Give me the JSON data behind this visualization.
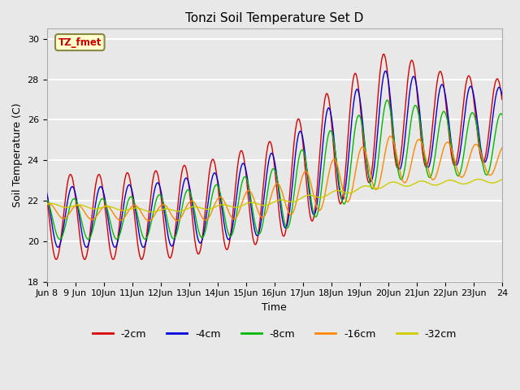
{
  "title": "Tonzi Soil Temperature Set D",
  "xlabel": "Time",
  "ylabel": "Soil Temperature (C)",
  "ylim": [
    18,
    30.5
  ],
  "xlim": [
    0,
    384
  ],
  "background_color": "#e8e8e8",
  "plot_bg_color": "#e8e8e8",
  "grid_color": "white",
  "series": {
    "-2cm": {
      "color": "#dd0000",
      "lw": 1.0
    },
    "-4cm": {
      "color": "#0000dd",
      "lw": 1.0
    },
    "-8cm": {
      "color": "#00bb00",
      "lw": 1.0
    },
    "-16cm": {
      "color": "#ff8800",
      "lw": 1.0
    },
    "-32cm": {
      "color": "#cccc00",
      "lw": 1.0
    }
  },
  "x_tick_labels": [
    "Jun 8",
    "9 Jun",
    "10Jun",
    "11Jun",
    "12Jun",
    "13Jun",
    "14Jun",
    "15Jun",
    "16Jun",
    "17Jun",
    "18Jun",
    "19Jun",
    "20Jun",
    "21Jun",
    "22Jun",
    "23Jun",
    "24"
  ],
  "x_tick_positions": [
    0,
    24,
    48,
    72,
    96,
    120,
    144,
    168,
    192,
    216,
    240,
    264,
    288,
    312,
    336,
    360,
    384
  ],
  "y_ticks": [
    18,
    20,
    22,
    24,
    26,
    28,
    30
  ],
  "annotation_text": "TZ_fmet",
  "annotation_color": "#cc0000",
  "annotation_bg": "#ffffcc",
  "annotation_border": "#888844",
  "figsize": [
    6.4,
    4.8
  ],
  "dpi": 100
}
